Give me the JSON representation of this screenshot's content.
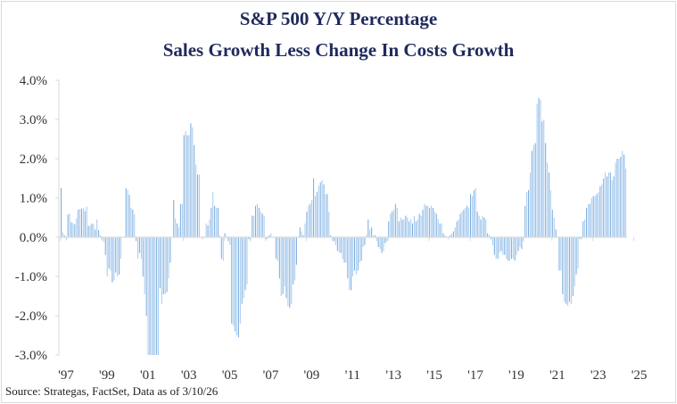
{
  "chart_data": {
    "type": "bar",
    "title": "S&P 500 Y/Y Percentage",
    "subtitle": "Sales Growth Less Change In Costs Growth",
    "xlabel": "",
    "ylabel": "",
    "ylim": [
      -3.0,
      4.0
    ],
    "yticks": [
      "4.0%",
      "3.0%",
      "2.0%",
      "1.0%",
      "0.0%",
      "-1.0%",
      "-2.0%",
      "-3.0%"
    ],
    "ytick_values": [
      4,
      3,
      2,
      1,
      0,
      -1,
      -2,
      -3
    ],
    "xticks": [
      "'97",
      "'99",
      "'01",
      "'03",
      "'05",
      "'07",
      "'09",
      "'11",
      "'13",
      "'15",
      "'17",
      "'19",
      "'21",
      "'23",
      "'25"
    ],
    "xtick_years": [
      1997,
      1999,
      2001,
      2003,
      2005,
      2007,
      2009,
      2011,
      2013,
      2015,
      2017,
      2019,
      2021,
      2023,
      2025
    ],
    "start": "1997-01",
    "frequency": "monthly",
    "unit": "%",
    "bar_color": "#7aaee0",
    "grid": false,
    "legend": "none",
    "values": [
      1.25,
      0.12,
      0.05,
      -0.08,
      0.58,
      0.6,
      0.38,
      0.36,
      0.33,
      0.48,
      0.7,
      0.72,
      0.73,
      0.74,
      0.67,
      0.78,
      0.29,
      0.3,
      0.35,
      0.33,
      0.2,
      0.45,
      0.18,
      0.05,
      -0.05,
      -0.12,
      -0.45,
      -1.0,
      -0.8,
      -0.85,
      -1.15,
      -1.1,
      -0.9,
      -1.0,
      -0.95,
      -0.55,
      0.0,
      0.0,
      1.25,
      1.2,
      1.08,
      0.75,
      0.7,
      0.58,
      -0.1,
      -0.55,
      -0.4,
      -0.55,
      -1.0,
      -1.45,
      -2.0,
      -3.0,
      -3.0,
      -3.0,
      -3.0,
      -3.0,
      -3.0,
      -3.0,
      -1.3,
      -1.7,
      -1.45,
      -1.45,
      -1.4,
      -1.05,
      -0.65,
      0.0,
      0.95,
      0.48,
      0.35,
      0.25,
      0.85,
      0.85,
      2.6,
      2.7,
      2.6,
      2.6,
      2.9,
      2.8,
      2.35,
      1.85,
      1.6,
      1.6,
      0.0,
      -0.05,
      0.0,
      0.35,
      0.3,
      0.45,
      0.75,
      1.15,
      0.8,
      0.75,
      0.75,
      0.05,
      -0.55,
      -0.6,
      0.1,
      0.03,
      -0.1,
      -0.2,
      -2.2,
      -2.25,
      -2.4,
      -2.5,
      -2.55,
      -2.2,
      -1.7,
      -1.55,
      -1.35,
      -1.2,
      -0.05,
      -0.1,
      0.55,
      0.55,
      0.8,
      0.85,
      0.75,
      0.65,
      0.6,
      0.55,
      -0.05,
      -0.05,
      0.05,
      0.1,
      0.0,
      0.0,
      -0.55,
      -0.6,
      -1.05,
      -1.5,
      -1.45,
      -1.25,
      -1.55,
      -1.75,
      -1.8,
      -1.7,
      -1.2,
      -1.1,
      -0.7,
      0.0,
      0.25,
      0.15,
      0.05,
      0.35,
      0.65,
      0.8,
      0.85,
      0.95,
      1.5,
      1.05,
      1.15,
      1.3,
      1.4,
      1.45,
      1.35,
      1.1,
      1.1,
      0.65,
      0.05,
      -0.1,
      -0.1,
      -0.2,
      -0.35,
      -0.4,
      -0.4,
      -0.55,
      -0.65,
      -0.65,
      -1.05,
      -1.35,
      -1.35,
      -1.0,
      -0.85,
      -0.95,
      -0.85,
      -0.65,
      -0.6,
      -0.25,
      -0.2,
      0.05,
      0.45,
      0.2,
      0.25,
      0.05,
      0.05,
      -0.1,
      -0.25,
      -0.3,
      -0.4,
      -0.35,
      -0.15,
      -0.1,
      0.4,
      0.6,
      0.65,
      0.7,
      0.85,
      0.75,
      0.4,
      0.5,
      0.45,
      0.45,
      0.55,
      0.5,
      0.4,
      0.45,
      0.35,
      0.55,
      0.4,
      0.45,
      0.6,
      0.55,
      0.7,
      0.85,
      0.8,
      0.8,
      0.75,
      0.8,
      0.75,
      0.65,
      0.6,
      0.45,
      0.35,
      0.35,
      0.1,
      0.05,
      0.0,
      -0.05,
      0.05,
      0.1,
      0.15,
      0.25,
      0.4,
      0.45,
      0.6,
      0.65,
      0.7,
      0.75,
      0.8,
      0.75,
      1.1,
      1.05,
      1.2,
      1.25,
      0.65,
      0.55,
      0.45,
      0.55,
      0.5,
      0.45,
      0.1,
      0.05,
      -0.05,
      -0.2,
      -0.45,
      -0.55,
      -0.55,
      -0.4,
      -0.35,
      -0.45,
      -0.45,
      -0.55,
      -0.6,
      -0.6,
      -0.55,
      -0.55,
      -0.6,
      -0.45,
      -0.35,
      -0.25,
      -0.3,
      -0.1,
      0.8,
      1.15,
      1.2,
      1.65,
      2.2,
      2.35,
      2.4,
      3.4,
      3.55,
      3.5,
      2.95,
      3.0,
      2.4,
      1.9,
      1.65,
      1.2,
      0.7,
      0.5,
      0.2,
      0.0,
      -0.85,
      -0.85,
      -1.45,
      -1.65,
      -1.7,
      -1.75,
      -1.65,
      -1.7,
      -1.5,
      -1.25,
      -0.95,
      -0.8,
      -0.05,
      -0.05,
      0.4,
      0.45,
      0.75,
      0.85,
      0.85,
      1.0,
      1.05,
      1.05,
      1.1,
      1.15,
      1.3,
      1.35,
      1.5,
      1.65,
      1.55,
      1.65,
      1.65,
      1.45,
      1.55,
      1.9,
      2.0,
      2.0,
      2.05,
      2.2,
      2.1,
      1.75
    ]
  },
  "footer": {
    "source": "Source: Strategas, FactSet, Data as of 3/10/26"
  }
}
